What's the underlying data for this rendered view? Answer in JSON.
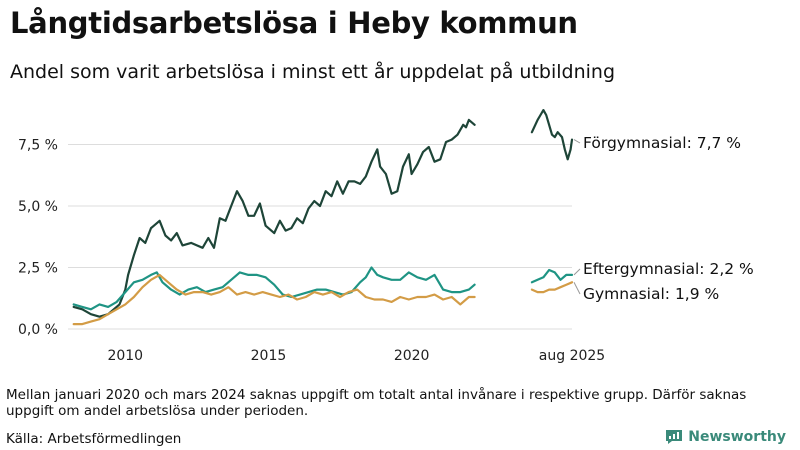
{
  "title": "Långtidsarbetslösa i Heby kommun",
  "subtitle": "Andel som varit arbetslösa i minst ett år uppdelat på utbildning",
  "note": "Mellan januari 2020 och mars 2024 saknas uppgift om totalt antal invånare i respektive grupp. Därför saknas uppgift om andel arbetslösa under perioden.",
  "source": "Källa: Arbetsförmedlingen",
  "brand": "Newsworthy",
  "colors": {
    "forgymnasial": "#1e4538",
    "eftergymnasial": "#1f9484",
    "gymnasial": "#d39c46",
    "grid": "#dddddd",
    "axis_text": "#222222",
    "brand": "#3a8a7a"
  },
  "chart_data": {
    "type": "line",
    "ylim": [
      0,
      9
    ],
    "yticks": [
      "0,0 %",
      "2,5 %",
      "5,0 %",
      "7,5 %"
    ],
    "ytick_values": [
      0,
      2.5,
      5,
      7.5
    ],
    "xticks": [
      "2010",
      "2015",
      "2020",
      "aug 2025"
    ],
    "series": [
      {
        "name": "Förgymnasial",
        "end_label": "Förgymnasial: 7,7 %",
        "color": "#1e4538",
        "segments": [
          [
            [
              2008.2,
              0.9
            ],
            [
              2008.5,
              0.8
            ],
            [
              2008.8,
              0.6
            ],
            [
              2009.1,
              0.5
            ],
            [
              2009.4,
              0.6
            ],
            [
              2009.6,
              0.8
            ],
            [
              2009.8,
              1.0
            ],
            [
              2010.0,
              1.6
            ],
            [
              2010.1,
              2.2
            ],
            [
              2010.3,
              3.0
            ],
            [
              2010.5,
              3.7
            ],
            [
              2010.7,
              3.5
            ],
            [
              2010.9,
              4.1
            ],
            [
              2011.0,
              4.2
            ],
            [
              2011.2,
              4.4
            ],
            [
              2011.4,
              3.8
            ],
            [
              2011.6,
              3.6
            ],
            [
              2011.8,
              3.9
            ],
            [
              2012.0,
              3.4
            ],
            [
              2012.3,
              3.5
            ],
            [
              2012.5,
              3.4
            ],
            [
              2012.7,
              3.3
            ],
            [
              2012.9,
              3.7
            ],
            [
              2013.1,
              3.3
            ],
            [
              2013.3,
              4.5
            ],
            [
              2013.5,
              4.4
            ],
            [
              2013.7,
              5.0
            ],
            [
              2013.9,
              5.6
            ],
            [
              2014.1,
              5.2
            ],
            [
              2014.3,
              4.6
            ],
            [
              2014.5,
              4.6
            ],
            [
              2014.7,
              5.1
            ],
            [
              2014.9,
              4.2
            ],
            [
              2015.2,
              3.9
            ],
            [
              2015.4,
              4.4
            ],
            [
              2015.6,
              4.0
            ],
            [
              2015.8,
              4.1
            ],
            [
              2016.0,
              4.5
            ],
            [
              2016.2,
              4.3
            ],
            [
              2016.4,
              4.9
            ],
            [
              2016.6,
              5.2
            ],
            [
              2016.8,
              5.0
            ],
            [
              2017.0,
              5.6
            ],
            [
              2017.2,
              5.4
            ],
            [
              2017.4,
              6.0
            ],
            [
              2017.6,
              5.5
            ],
            [
              2017.8,
              6.0
            ],
            [
              2018.0,
              6.0
            ],
            [
              2018.2,
              5.9
            ],
            [
              2018.4,
              6.2
            ],
            [
              2018.6,
              6.8
            ],
            [
              2018.8,
              7.3
            ],
            [
              2018.9,
              6.6
            ],
            [
              2019.1,
              6.3
            ],
            [
              2019.3,
              5.5
            ],
            [
              2019.5,
              5.6
            ],
            [
              2019.7,
              6.6
            ],
            [
              2019.9,
              7.1
            ],
            [
              2020.0,
              6.3
            ],
            [
              2020.2,
              6.7
            ],
            [
              2020.4,
              7.2
            ],
            [
              2020.6,
              7.4
            ],
            [
              2020.8,
              6.8
            ],
            [
              2021.0,
              6.9
            ],
            [
              2021.2,
              7.6
            ],
            [
              2021.4,
              7.7
            ],
            [
              2021.6,
              7.9
            ],
            [
              2021.8,
              8.3
            ],
            [
              2021.9,
              8.2
            ],
            [
              2022.0,
              8.5
            ],
            [
              2022.2,
              8.3
            ]
          ],
          [
            [
              2024.2,
              8.0
            ],
            [
              2024.4,
              8.5
            ],
            [
              2024.5,
              8.7
            ],
            [
              2024.6,
              8.9
            ],
            [
              2024.7,
              8.7
            ],
            [
              2024.8,
              8.3
            ],
            [
              2024.9,
              7.9
            ],
            [
              2025.0,
              7.8
            ],
            [
              2025.1,
              8.0
            ],
            [
              2025.25,
              7.8
            ],
            [
              2025.35,
              7.3
            ],
            [
              2025.45,
              6.9
            ],
            [
              2025.55,
              7.3
            ],
            [
              2025.6,
              7.7
            ]
          ]
        ]
      },
      {
        "name": "Eftergymnasial",
        "end_label": "Eftergymnasial: 2,2 %",
        "color": "#1f9484",
        "segments": [
          [
            [
              2008.2,
              1.0
            ],
            [
              2008.5,
              0.9
            ],
            [
              2008.8,
              0.8
            ],
            [
              2009.1,
              1.0
            ],
            [
              2009.4,
              0.9
            ],
            [
              2009.7,
              1.1
            ],
            [
              2010.0,
              1.5
            ],
            [
              2010.3,
              1.9
            ],
            [
              2010.6,
              2.0
            ],
            [
              2010.9,
              2.2
            ],
            [
              2011.1,
              2.3
            ],
            [
              2011.3,
              1.9
            ],
            [
              2011.6,
              1.6
            ],
            [
              2011.9,
              1.4
            ],
            [
              2012.2,
              1.6
            ],
            [
              2012.5,
              1.7
            ],
            [
              2012.8,
              1.5
            ],
            [
              2013.1,
              1.6
            ],
            [
              2013.4,
              1.7
            ],
            [
              2013.7,
              2.0
            ],
            [
              2014.0,
              2.3
            ],
            [
              2014.3,
              2.2
            ],
            [
              2014.6,
              2.2
            ],
            [
              2014.9,
              2.1
            ],
            [
              2015.2,
              1.8
            ],
            [
              2015.5,
              1.4
            ],
            [
              2015.8,
              1.3
            ],
            [
              2016.1,
              1.4
            ],
            [
              2016.4,
              1.5
            ],
            [
              2016.7,
              1.6
            ],
            [
              2017.0,
              1.6
            ],
            [
              2017.3,
              1.5
            ],
            [
              2017.6,
              1.4
            ],
            [
              2017.9,
              1.5
            ],
            [
              2018.2,
              1.9
            ],
            [
              2018.4,
              2.1
            ],
            [
              2018.6,
              2.5
            ],
            [
              2018.8,
              2.2
            ],
            [
              2019.0,
              2.1
            ],
            [
              2019.3,
              2.0
            ],
            [
              2019.6,
              2.0
            ],
            [
              2019.9,
              2.3
            ],
            [
              2020.2,
              2.1
            ],
            [
              2020.5,
              2.0
            ],
            [
              2020.8,
              2.2
            ],
            [
              2021.1,
              1.6
            ],
            [
              2021.4,
              1.5
            ],
            [
              2021.7,
              1.5
            ],
            [
              2022.0,
              1.6
            ],
            [
              2022.2,
              1.8
            ]
          ],
          [
            [
              2024.2,
              1.9
            ],
            [
              2024.4,
              2.0
            ],
            [
              2024.6,
              2.1
            ],
            [
              2024.8,
              2.4
            ],
            [
              2025.0,
              2.3
            ],
            [
              2025.2,
              2.0
            ],
            [
              2025.4,
              2.2
            ],
            [
              2025.6,
              2.2
            ]
          ]
        ]
      },
      {
        "name": "Gymnasial",
        "end_label": "Gymnasial: 1,9 %",
        "color": "#d39c46",
        "segments": [
          [
            [
              2008.2,
              0.2
            ],
            [
              2008.5,
              0.2
            ],
            [
              2008.8,
              0.3
            ],
            [
              2009.1,
              0.4
            ],
            [
              2009.4,
              0.6
            ],
            [
              2009.7,
              0.8
            ],
            [
              2010.0,
              1.0
            ],
            [
              2010.3,
              1.3
            ],
            [
              2010.6,
              1.7
            ],
            [
              2010.9,
              2.0
            ],
            [
              2011.2,
              2.2
            ],
            [
              2011.5,
              1.9
            ],
            [
              2011.8,
              1.6
            ],
            [
              2012.1,
              1.4
            ],
            [
              2012.4,
              1.5
            ],
            [
              2012.7,
              1.5
            ],
            [
              2013.0,
              1.4
            ],
            [
              2013.3,
              1.5
            ],
            [
              2013.6,
              1.7
            ],
            [
              2013.9,
              1.4
            ],
            [
              2014.2,
              1.5
            ],
            [
              2014.5,
              1.4
            ],
            [
              2014.8,
              1.5
            ],
            [
              2015.1,
              1.4
            ],
            [
              2015.4,
              1.3
            ],
            [
              2015.7,
              1.4
            ],
            [
              2016.0,
              1.2
            ],
            [
              2016.3,
              1.3
            ],
            [
              2016.6,
              1.5
            ],
            [
              2016.9,
              1.4
            ],
            [
              2017.2,
              1.5
            ],
            [
              2017.5,
              1.3
            ],
            [
              2017.8,
              1.5
            ],
            [
              2018.1,
              1.6
            ],
            [
              2018.4,
              1.3
            ],
            [
              2018.7,
              1.2
            ],
            [
              2019.0,
              1.2
            ],
            [
              2019.3,
              1.1
            ],
            [
              2019.6,
              1.3
            ],
            [
              2019.9,
              1.2
            ],
            [
              2020.2,
              1.3
            ],
            [
              2020.5,
              1.3
            ],
            [
              2020.8,
              1.4
            ],
            [
              2021.1,
              1.2
            ],
            [
              2021.4,
              1.3
            ],
            [
              2021.7,
              1.0
            ],
            [
              2022.0,
              1.3
            ],
            [
              2022.2,
              1.3
            ]
          ],
          [
            [
              2024.2,
              1.6
            ],
            [
              2024.4,
              1.5
            ],
            [
              2024.6,
              1.5
            ],
            [
              2024.8,
              1.6
            ],
            [
              2025.0,
              1.6
            ],
            [
              2025.2,
              1.7
            ],
            [
              2025.4,
              1.8
            ],
            [
              2025.6,
              1.9
            ]
          ]
        ]
      }
    ]
  }
}
